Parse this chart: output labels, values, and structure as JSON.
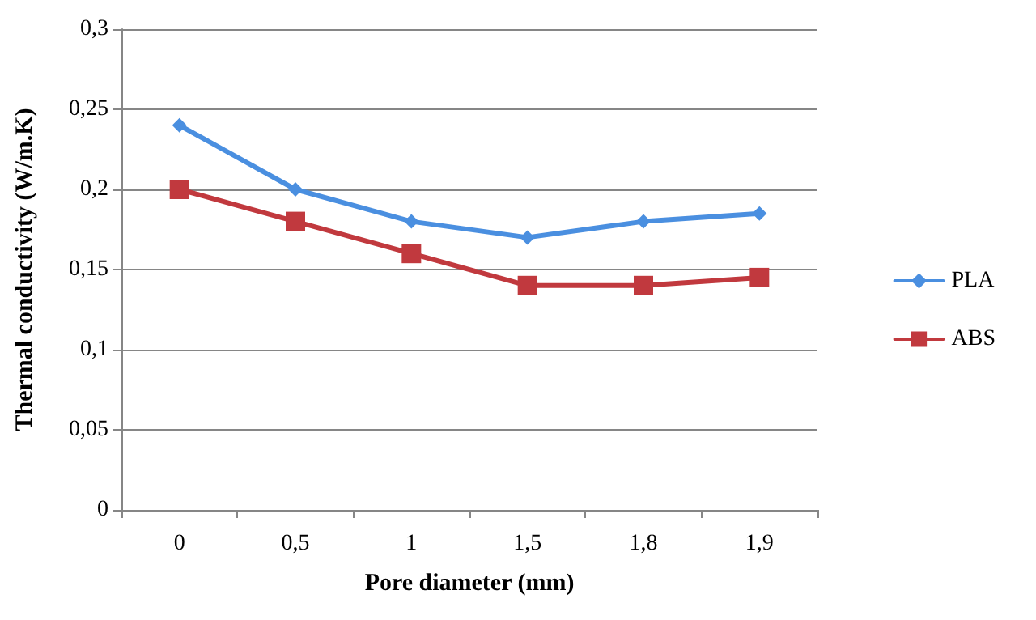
{
  "chart_data": {
    "type": "line",
    "xlabel": "Pore diameter (mm)",
    "ylabel": "Thermal conductivity (W/m.K)",
    "categories": [
      "0",
      "0,5",
      "1",
      "1,5",
      "1,8",
      "1,9"
    ],
    "series": [
      {
        "name": "PLA",
        "color": "#4a8fe0",
        "marker": "diamond",
        "values": [
          0.24,
          0.2,
          0.18,
          0.17,
          0.18,
          0.185
        ]
      },
      {
        "name": "ABS",
        "color": "#c1393e",
        "marker": "square",
        "values": [
          0.2,
          0.18,
          0.16,
          0.14,
          0.14,
          0.145
        ]
      }
    ],
    "ylim": [
      0,
      0.3
    ],
    "yticks": [
      0,
      {
        "value": 0.05,
        "label": "0,05"
      },
      {
        "value": 0.1,
        "label": "0,1"
      },
      {
        "value": 0.15,
        "label": "0,15"
      },
      {
        "value": 0.2,
        "label": "0,2"
      },
      {
        "value": 0.25,
        "label": "0,25"
      },
      {
        "value": 0.3,
        "label": "0,3"
      }
    ],
    "grid": "y",
    "legend": "right"
  }
}
